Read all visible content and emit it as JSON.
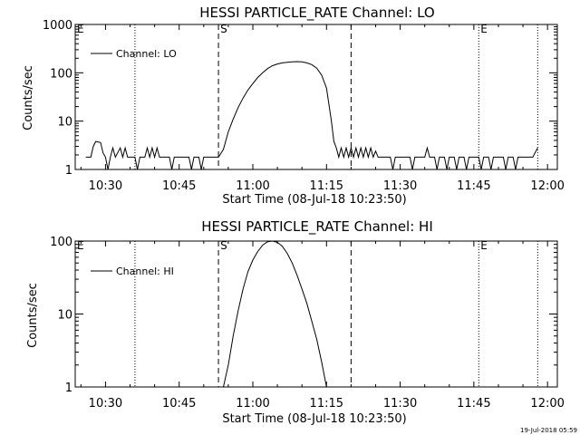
{
  "chart_data": [
    {
      "type": "line",
      "title": "HESSI PARTICLE_RATE Channel: LO",
      "xlabel": "Start Time (08-Jul-18 10:23:50)",
      "ylabel": "Counts/sec",
      "xlim_minutes": [
        "10:23:50",
        "12:02"
      ],
      "ylim": [
        1,
        1000
      ],
      "yscale": "log",
      "xticks": [
        "10:30",
        "10:45",
        "11:00",
        "11:15",
        "11:30",
        "11:45",
        "12:00"
      ],
      "yticks": [
        1,
        10,
        100,
        1000
      ],
      "ytick_labels": [
        "1",
        "10",
        "100",
        "1000"
      ],
      "legend": {
        "placement": "top-left",
        "entries": [
          "Channel: LO"
        ]
      },
      "markers": [
        {
          "label": "E",
          "time": "10:23:50",
          "style": "none"
        },
        {
          "label": "",
          "time": "10:36",
          "style": "dotted"
        },
        {
          "label": "S",
          "time": "10:53",
          "style": "dashed"
        },
        {
          "label": "",
          "time": "11:20",
          "style": "dashed"
        },
        {
          "label": "E",
          "time": "11:46",
          "style": "dotted"
        },
        {
          "label": "",
          "time": "11:58",
          "style": "dotted"
        }
      ],
      "series": [
        {
          "name": "Channel: LO",
          "points": [
            [
              "10:26",
              1.8
            ],
            [
              "10:27",
              1.8
            ],
            [
              "10:27.5",
              3.0
            ],
            [
              "10:28",
              3.8
            ],
            [
              "10:29",
              3.6
            ],
            [
              "10:29.5",
              2.2
            ],
            [
              "10:30",
              1.8
            ],
            [
              "10:30.5",
              1.0
            ],
            [
              "10:31",
              1.8
            ],
            [
              "10:31.5",
              2.8
            ],
            [
              "10:32",
              1.8
            ],
            [
              "10:33",
              2.8
            ],
            [
              "10:33.5",
              1.8
            ],
            [
              "10:34",
              2.8
            ],
            [
              "10:34.5",
              1.8
            ],
            [
              "10:36",
              1.8
            ],
            [
              "10:36.5",
              1.0
            ],
            [
              "10:37",
              1.8
            ],
            [
              "10:38",
              1.8
            ],
            [
              "10:38.5",
              2.8
            ],
            [
              "10:39",
              1.8
            ],
            [
              "10:39.5",
              2.8
            ],
            [
              "10:40",
              1.8
            ],
            [
              "10:40.5",
              2.8
            ],
            [
              "10:41",
              1.8
            ],
            [
              "10:43",
              1.8
            ],
            [
              "10:43.5",
              1.0
            ],
            [
              "10:44",
              1.8
            ],
            [
              "10:46",
              1.8
            ],
            [
              "10:47",
              1.8
            ],
            [
              "10:47.5",
              1.0
            ],
            [
              "10:48",
              1.8
            ],
            [
              "10:49",
              1.8
            ],
            [
              "10:49.5",
              1.0
            ],
            [
              "10:50",
              1.8
            ],
            [
              "10:53",
              1.8
            ],
            [
              "10:54",
              2.6
            ],
            [
              "10:55",
              6
            ],
            [
              "10:56",
              11
            ],
            [
              "10:57",
              19
            ],
            [
              "10:58",
              30
            ],
            [
              "10:59",
              44
            ],
            [
              "11:00",
              60
            ],
            [
              "11:01",
              80
            ],
            [
              "11:02",
              100
            ],
            [
              "11:03",
              122
            ],
            [
              "11:04",
              140
            ],
            [
              "11:05",
              152
            ],
            [
              "11:06",
              160
            ],
            [
              "11:07",
              165
            ],
            [
              "11:08",
              168
            ],
            [
              "11:09",
              170
            ],
            [
              "11:10",
              168
            ],
            [
              "11:11",
              160
            ],
            [
              "11:12",
              148
            ],
            [
              "11:13",
              125
            ],
            [
              "11:14",
              90
            ],
            [
              "11:15",
              48
            ],
            [
              "11:16",
              10
            ],
            [
              "11:16.5",
              3.8
            ],
            [
              "11:17",
              2.8
            ],
            [
              "11:17.5",
              1.8
            ],
            [
              "11:18",
              2.8
            ],
            [
              "11:18.5",
              1.8
            ],
            [
              "11:19",
              2.8
            ],
            [
              "11:19.5",
              1.8
            ],
            [
              "11:20",
              2.8
            ],
            [
              "11:20.5",
              1.8
            ],
            [
              "11:21",
              2.8
            ],
            [
              "11:21.5",
              1.8
            ],
            [
              "11:22",
              2.8
            ],
            [
              "11:22.5",
              1.8
            ],
            [
              "11:23",
              2.8
            ],
            [
              "11:23.5",
              1.8
            ],
            [
              "11:24",
              2.8
            ],
            [
              "11:24.5",
              1.8
            ],
            [
              "11:25",
              2.4
            ],
            [
              "11:25.5",
              1.8
            ],
            [
              "11:27",
              1.8
            ],
            [
              "11:28",
              1.8
            ],
            [
              "11:28.5",
              1.0
            ],
            [
              "11:29",
              1.8
            ],
            [
              "11:32",
              1.8
            ],
            [
              "11:32.5",
              1.0
            ],
            [
              "11:33",
              1.8
            ],
            [
              "11:35",
              1.8
            ],
            [
              "11:35.5",
              2.8
            ],
            [
              "11:36",
              1.8
            ],
            [
              "11:37",
              1.8
            ],
            [
              "11:37.5",
              1.0
            ],
            [
              "11:38",
              1.8
            ],
            [
              "11:39",
              1.8
            ],
            [
              "11:39.5",
              1.0
            ],
            [
              "11:40",
              1.8
            ],
            [
              "11:41",
              1.8
            ],
            [
              "11:41.5",
              1.0
            ],
            [
              "11:42",
              1.8
            ],
            [
              "11:43",
              1.8
            ],
            [
              "11:43.5",
              1.0
            ],
            [
              "11:44",
              1.8
            ],
            [
              "11:46",
              1.8
            ],
            [
              "11:46.5",
              1.0
            ],
            [
              "11:47",
              1.8
            ],
            [
              "11:48",
              1.8
            ],
            [
              "11:48.5",
              1.0
            ],
            [
              "11:49",
              1.8
            ],
            [
              "11:51",
              1.8
            ],
            [
              "11:51.5",
              1.0
            ],
            [
              "11:52",
              1.8
            ],
            [
              "11:53",
              1.8
            ],
            [
              "11:53.5",
              1.0
            ],
            [
              "11:54",
              1.8
            ],
            [
              "11:57",
              1.8
            ],
            [
              "11:58",
              2.8
            ]
          ]
        }
      ]
    },
    {
      "type": "line",
      "title": "HESSI PARTICLE_RATE Channel: HI",
      "xlabel": "Start Time (08-Jul-18 10:23:50)",
      "ylabel": "Counts/sec",
      "xlim_minutes": [
        "10:23:50",
        "12:02"
      ],
      "ylim": [
        1,
        100
      ],
      "yscale": "log",
      "xticks": [
        "10:30",
        "10:45",
        "11:00",
        "11:15",
        "11:30",
        "11:45",
        "12:00"
      ],
      "yticks": [
        1,
        10,
        100
      ],
      "ytick_labels": [
        "1",
        "10",
        "100"
      ],
      "legend": {
        "placement": "top-left",
        "entries": [
          "Channel: HI"
        ]
      },
      "markers": [
        {
          "label": "E",
          "time": "10:23:50",
          "style": "none"
        },
        {
          "label": "",
          "time": "10:36",
          "style": "dotted"
        },
        {
          "label": "S",
          "time": "10:53",
          "style": "dashed"
        },
        {
          "label": "",
          "time": "11:20",
          "style": "dashed"
        },
        {
          "label": "E",
          "time": "11:46",
          "style": "dotted"
        },
        {
          "label": "",
          "time": "11:58",
          "style": "dotted"
        }
      ],
      "series": [
        {
          "name": "Channel: HI",
          "points": [
            [
              "10:54",
              1.0
            ],
            [
              "10:55",
              2.0
            ],
            [
              "10:56",
              5.0
            ],
            [
              "10:57",
              11
            ],
            [
              "10:58",
              22
            ],
            [
              "10:59",
              38
            ],
            [
              "11:00",
              55
            ],
            [
              "11:01",
              72
            ],
            [
              "11:02",
              88
            ],
            [
              "11:03",
              98
            ],
            [
              "11:04",
              100
            ],
            [
              "11:05",
              96
            ],
            [
              "11:06",
              85
            ],
            [
              "11:07",
              68
            ],
            [
              "11:08",
              50
            ],
            [
              "11:09",
              34
            ],
            [
              "11:10",
              22
            ],
            [
              "11:11",
              14
            ],
            [
              "11:12",
              8
            ],
            [
              "11:13",
              4.5
            ],
            [
              "11:14",
              2.2
            ],
            [
              "11:15",
              1.0
            ]
          ]
        }
      ]
    }
  ],
  "footer": {
    "timestamp": "19-Jul-2018 05:59"
  }
}
